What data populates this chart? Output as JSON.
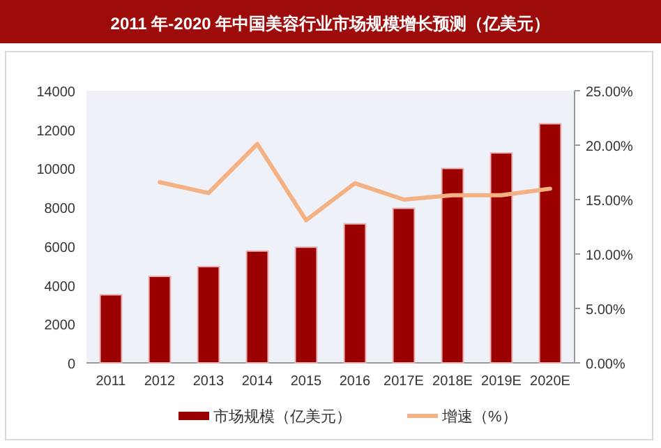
{
  "chart_data": {
    "type": "bar",
    "title": "2011 年-2020 年中国美容行业市场规模增长预测（亿美元）",
    "categories": [
      "2011",
      "2012",
      "2013",
      "2014",
      "2015",
      "2016",
      "2017E",
      "2018E",
      "2019E",
      "2020E"
    ],
    "series": [
      {
        "name": "市场规模（亿美元）",
        "color": "#9b0000",
        "values": [
          3500,
          4450,
          4950,
          5750,
          5950,
          7150,
          7950,
          10000,
          10800,
          12300
        ]
      },
      {
        "name": "增速（%）",
        "type": "line",
        "axis": "y2",
        "color": "#f4b183",
        "values": [
          null,
          16.6,
          15.6,
          20.1,
          13.1,
          16.5,
          15.0,
          15.4,
          15.4,
          16.0
        ]
      }
    ],
    "ylim": [
      0,
      14000
    ],
    "yticks": [
      0,
      2000,
      4000,
      6000,
      8000,
      10000,
      12000,
      14000
    ],
    "y2lim": [
      0,
      25
    ],
    "y2ticks": [
      {
        "value": 0,
        "label": "0.00%"
      },
      {
        "value": 5,
        "label": "5.00%"
      },
      {
        "value": 10,
        "label": "10.00%"
      },
      {
        "value": 15,
        "label": "15.00%"
      },
      {
        "value": 20,
        "label": "20.00%"
      },
      {
        "value": 25,
        "label": "25.00%"
      }
    ],
    "legend": "bottom"
  }
}
